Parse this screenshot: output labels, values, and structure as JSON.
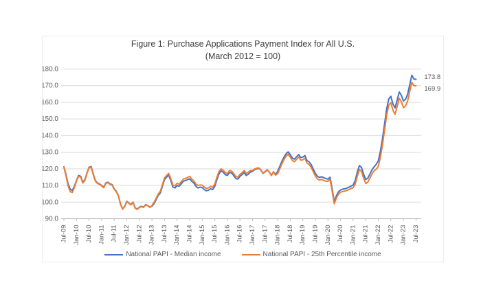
{
  "figure": {
    "title_line1": "Figure 1: Purchase Applications Payment Index for All U.S.",
    "title_line2": "(March 2012 = 100)"
  },
  "chart_data": {
    "type": "line",
    "title": "Figure 1: Purchase Applications Payment Index for All U.S.",
    "subtitle": "(March 2012 = 100)",
    "x_start": "Jul-2009",
    "x_end": "Jul-2023",
    "x_frequency": "monthly",
    "x_tick_labels": [
      "Jul-09",
      "Jan-10",
      "Jul-10",
      "Jan-11",
      "Jul-11",
      "Jan-12",
      "Jul-12",
      "Jan-13",
      "Jul-13",
      "Jan-14",
      "Jul-14",
      "Jan-15",
      "Jul-15",
      "Jan-16",
      "Jul-16",
      "Jan-17",
      "Jul-17",
      "Jan-18",
      "Jul-18",
      "Jan-19",
      "Jul-19",
      "Jan-20",
      "Jul-20",
      "Jan-21",
      "Jul-21",
      "Jan-22",
      "Jul-22",
      "Jan-23",
      "Jul-23"
    ],
    "x_tick_interval_months": 6,
    "y_tick_labels": [
      "90.0",
      "100.0",
      "110.0",
      "120.0",
      "130.0",
      "140.0",
      "150.0",
      "160.0",
      "170.0",
      "180.0"
    ],
    "y_ticks": [
      90,
      100,
      110,
      120,
      130,
      140,
      150,
      160,
      170,
      180
    ],
    "ylim": [
      90,
      180
    ],
    "grid": "horizontal",
    "legend_position": "bottom",
    "colors": {
      "median": "#4472C4",
      "p25": "#ED7D31",
      "grid": "#d9d9d9",
      "axis": "#b0b0b0",
      "tick_text": "#595959"
    },
    "series": [
      {
        "name": "National PAPI - Median income",
        "color": "#4472C4",
        "end_label": "173.8",
        "values": [
          121.3,
          116.5,
          111.0,
          107.8,
          107.0,
          109.5,
          113.0,
          116.0,
          115.5,
          112.0,
          113.5,
          117.5,
          121.0,
          121.4,
          117.0,
          113.0,
          111.5,
          111.0,
          110.0,
          109.0,
          111.5,
          112.0,
          111.0,
          110.5,
          108.0,
          106.5,
          104.0,
          99.0,
          96.0,
          97.5,
          100.5,
          99.5,
          98.5,
          100.0,
          96.5,
          95.8,
          97.0,
          97.5,
          97.0,
          98.5,
          98.0,
          97.0,
          97.5,
          99.0,
          101.5,
          104.0,
          105.5,
          109.5,
          113.5,
          115.0,
          116.2,
          113.0,
          109.0,
          108.5,
          110.0,
          109.5,
          111.0,
          112.5,
          113.0,
          113.5,
          114.0,
          112.5,
          111.5,
          109.5,
          108.5,
          109.0,
          108.8,
          107.5,
          106.8,
          107.2,
          108.0,
          107.5,
          109.5,
          113.5,
          117.0,
          118.8,
          118.0,
          116.5,
          116.0,
          117.8,
          117.5,
          116.0,
          114.2,
          113.8,
          115.5,
          116.5,
          117.8,
          116.0,
          116.8,
          118.0,
          118.5,
          119.5,
          120.0,
          120.3,
          119.2,
          117.2,
          118.2,
          119.3,
          118.0,
          116.0,
          118.3,
          116.5,
          118.5,
          121.5,
          124.5,
          127.0,
          129.0,
          130.2,
          128.5,
          126.5,
          125.8,
          127.2,
          128.6,
          126.8,
          127.0,
          128.0,
          125.0,
          124.2,
          122.5,
          119.8,
          117.2,
          115.5,
          114.8,
          115.3,
          114.6,
          114.2,
          113.8,
          115.0,
          108.0,
          100.3,
          103.8,
          106.2,
          107.3,
          107.8,
          108.0,
          108.4,
          109.0,
          109.6,
          110.3,
          113.0,
          118.0,
          122.0,
          120.8,
          116.8,
          113.6,
          114.4,
          116.8,
          119.4,
          121.2,
          122.6,
          124.8,
          130.5,
          138.0,
          147.0,
          156.0,
          162.0,
          163.6,
          159.0,
          156.6,
          161.2,
          166.2,
          164.2,
          160.8,
          161.8,
          164.8,
          170.5,
          176.3,
          174.0,
          173.8
        ]
      },
      {
        "name": "National PAPI - 25th Percentile income",
        "color": "#ED7D31",
        "end_label": "169.9",
        "values": [
          121.0,
          115.8,
          109.8,
          106.3,
          105.8,
          108.8,
          112.6,
          115.5,
          115.0,
          111.5,
          113.0,
          117.2,
          120.7,
          121.0,
          116.5,
          112.6,
          111.2,
          110.7,
          109.7,
          108.7,
          111.2,
          111.7,
          110.7,
          110.2,
          107.7,
          106.2,
          103.7,
          98.7,
          95.7,
          97.3,
          100.3,
          99.3,
          98.3,
          99.8,
          96.3,
          95.6,
          96.8,
          97.3,
          96.8,
          98.3,
          97.8,
          96.8,
          98.0,
          99.8,
          102.3,
          104.8,
          106.5,
          110.5,
          114.5,
          116.0,
          117.2,
          114.2,
          110.2,
          109.8,
          111.3,
          110.8,
          112.3,
          113.8,
          114.3,
          114.8,
          115.5,
          113.8,
          112.8,
          110.8,
          110.0,
          110.3,
          110.2,
          109.0,
          108.2,
          108.6,
          109.4,
          108.9,
          110.9,
          114.9,
          118.4,
          120.0,
          119.2,
          117.7,
          117.2,
          119.0,
          118.7,
          117.2,
          115.4,
          115.0,
          116.7,
          117.7,
          119.0,
          117.2,
          118.0,
          119.0,
          119.0,
          119.9,
          120.4,
          120.6,
          119.4,
          117.4,
          118.4,
          119.5,
          118.1,
          116.0,
          118.2,
          116.2,
          117.2,
          120.0,
          123.0,
          125.6,
          127.6,
          128.8,
          127.0,
          125.0,
          124.3,
          125.7,
          127.1,
          125.3,
          125.4,
          126.4,
          123.4,
          122.6,
          120.9,
          118.2,
          115.6,
          113.9,
          113.2,
          113.7,
          113.0,
          112.6,
          112.5,
          113.7,
          106.5,
          99.0,
          102.4,
          104.8,
          105.9,
          106.4,
          106.6,
          107.0,
          107.6,
          108.2,
          108.7,
          110.8,
          115.6,
          119.6,
          118.4,
          114.4,
          111.2,
          112.0,
          114.4,
          117.0,
          118.8,
          119.8,
          121.4,
          126.9,
          134.4,
          143.2,
          152.2,
          158.2,
          159.8,
          155.2,
          152.8,
          157.4,
          162.4,
          160.4,
          156.8,
          157.8,
          160.8,
          166.4,
          172.0,
          170.0,
          169.9
        ]
      }
    ]
  }
}
